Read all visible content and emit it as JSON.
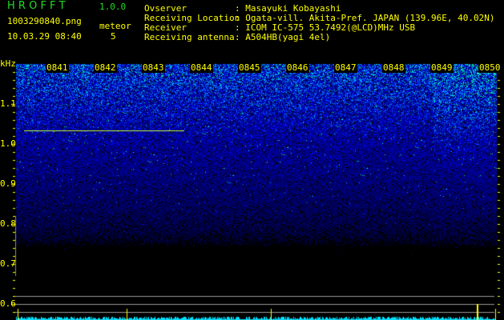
{
  "app": {
    "name": "H R O F F T",
    "version": "1.0.0"
  },
  "file": {
    "filename": "1003290840.png",
    "datetime": "10.03.29 08:40"
  },
  "meteor": {
    "label": "meteor",
    "count": "5"
  },
  "info": [
    {
      "label": "Ovserver",
      "value": ": Masayuki Kobayashi"
    },
    {
      "label": "Receiving Location",
      "value": ": Ogata-vill. Akita-Pref. JAPAN (139.96E, 40.02N)"
    },
    {
      "label": "Receiver",
      "value": ": ICOM IC-575 53.7492(@LCD)MHz USB"
    },
    {
      "label": "Receiving antenna",
      "value": ": A504HB(yagi 4el)"
    }
  ],
  "spectrogram": {
    "y_unit": "kHz",
    "y_ticks": [
      "1.1",
      "1.0",
      "0.9",
      "0.8",
      "0.7",
      "0.6"
    ],
    "time_labels": [
      "0841",
      "0842",
      "0843",
      "0844",
      "0845",
      "0846",
      "0847",
      "0848",
      "0849",
      "0850"
    ],
    "colors": {
      "label": "#ffff00",
      "noise_high": "#00ffcc",
      "noise_mid": "#1030e0",
      "spectrum": "#00e0ff",
      "meteor_trace": "#c8ff20"
    }
  }
}
